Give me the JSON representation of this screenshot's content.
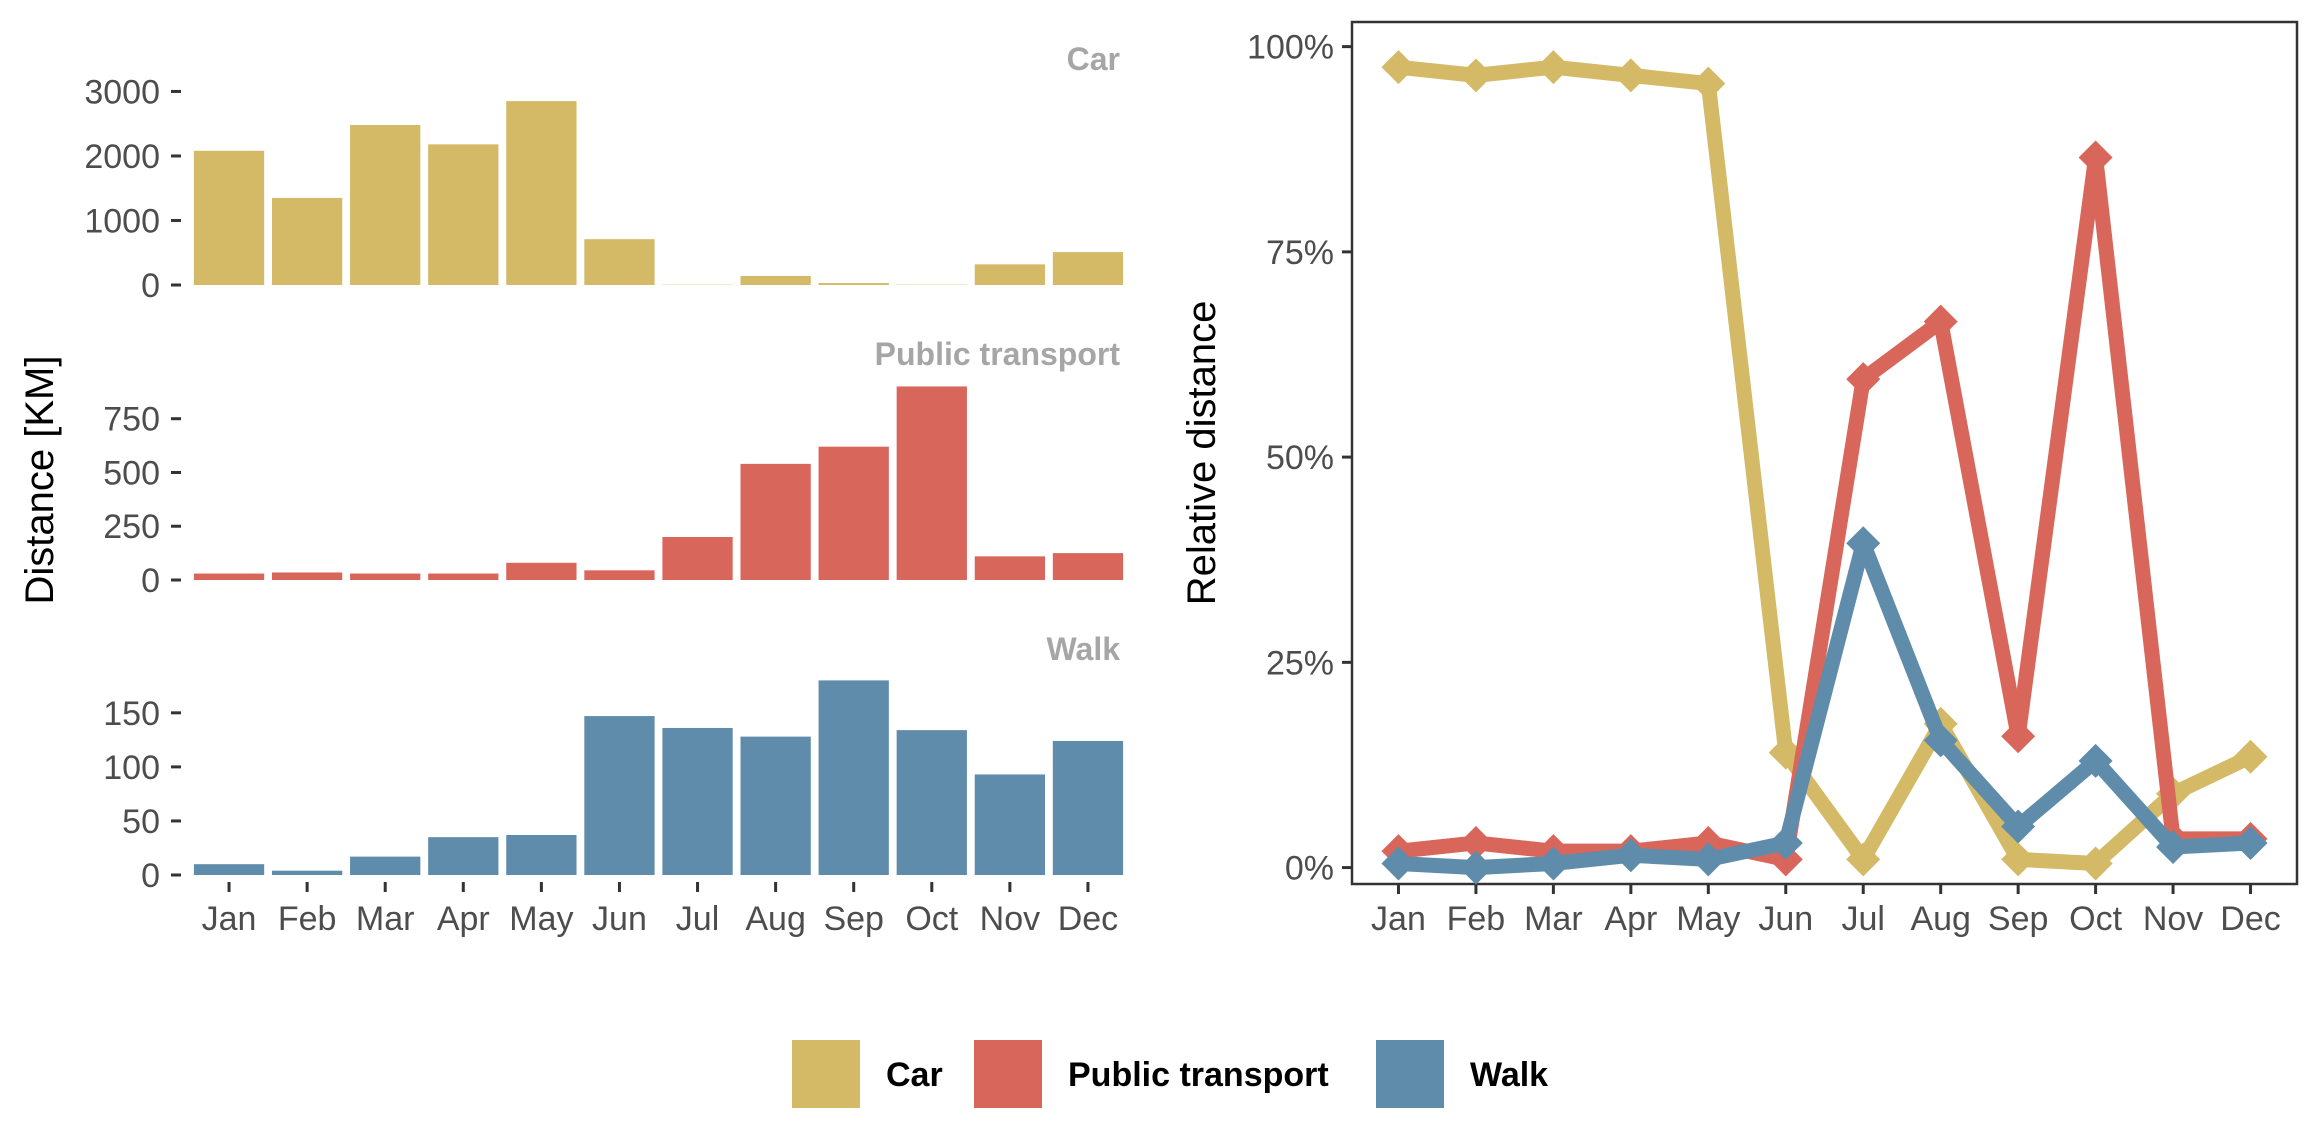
{
  "chart_data": [
    {
      "type": "bar",
      "facet_layout": "stacked vertically, shared x axis",
      "ylabel": "Distance [KM]",
      "categories": [
        "Jan",
        "Feb",
        "Mar",
        "Apr",
        "May",
        "Jun",
        "Jul",
        "Aug",
        "Sep",
        "Oct",
        "Nov",
        "Dec"
      ],
      "grid": false,
      "panels": [
        {
          "title": "Car",
          "color": "#D4B966",
          "values": [
            2080,
            1350,
            2480,
            2180,
            2850,
            710,
            5,
            140,
            30,
            5,
            320,
            510
          ],
          "ylim": [
            0,
            3100
          ],
          "yticks": [
            0,
            1000,
            2000,
            3000
          ],
          "ytick_labels": [
            "0",
            "1000",
            "2000",
            "3000"
          ]
        },
        {
          "title": "Public transport",
          "color": "#D9665B",
          "values": [
            30,
            35,
            30,
            30,
            80,
            45,
            200,
            540,
            620,
            900,
            110,
            125
          ],
          "ylim": [
            0,
            930
          ],
          "yticks": [
            0,
            250,
            500,
            750
          ],
          "ytick_labels": [
            "0",
            "250",
            "500",
            "750"
          ]
        },
        {
          "title": "Walk",
          "color": "#5E8CAA",
          "values": [
            10,
            4,
            17,
            35,
            37,
            147,
            136,
            128,
            180,
            134,
            93,
            124
          ],
          "ylim": [
            0,
            185
          ],
          "yticks": [
            0,
            50,
            100,
            150
          ],
          "ytick_labels": [
            "0",
            "50",
            "100",
            "150"
          ]
        }
      ]
    },
    {
      "type": "line",
      "ylabel": "Relative distance",
      "x": [
        "Jan",
        "Feb",
        "Mar",
        "Apr",
        "May",
        "Jun",
        "Jul",
        "Aug",
        "Sep",
        "Oct",
        "Nov",
        "Dec"
      ],
      "ylim": [
        -0.02,
        1.03
      ],
      "yticks": [
        0,
        0.25,
        0.5,
        0.75,
        1.0
      ],
      "ytick_labels": [
        "0%",
        "25%",
        "50%",
        "75%",
        "100%"
      ],
      "marker": "diamond",
      "grid": false,
      "series": [
        {
          "name": "Car",
          "color": "#D4B966",
          "values": [
            0.975,
            0.965,
            0.975,
            0.965,
            0.955,
            0.14,
            0.01,
            0.175,
            0.01,
            0.005,
            0.09,
            0.135
          ]
        },
        {
          "name": "Public transport",
          "color": "#D9665B",
          "values": [
            0.02,
            0.03,
            0.02,
            0.02,
            0.03,
            0.01,
            0.595,
            0.665,
            0.16,
            0.865,
            0.035,
            0.035
          ]
        },
        {
          "name": "Walk",
          "color": "#5E8CAA",
          "values": [
            0.005,
            0.0,
            0.005,
            0.015,
            0.01,
            0.03,
            0.395,
            0.155,
            0.05,
            0.13,
            0.025,
            0.03
          ]
        }
      ]
    }
  ],
  "legend": {
    "position": "bottom",
    "items": [
      {
        "label": "Car",
        "color": "#D4B966"
      },
      {
        "label": "Public transport",
        "color": "#D9665B"
      },
      {
        "label": "Walk",
        "color": "#5E8CAA"
      }
    ]
  }
}
